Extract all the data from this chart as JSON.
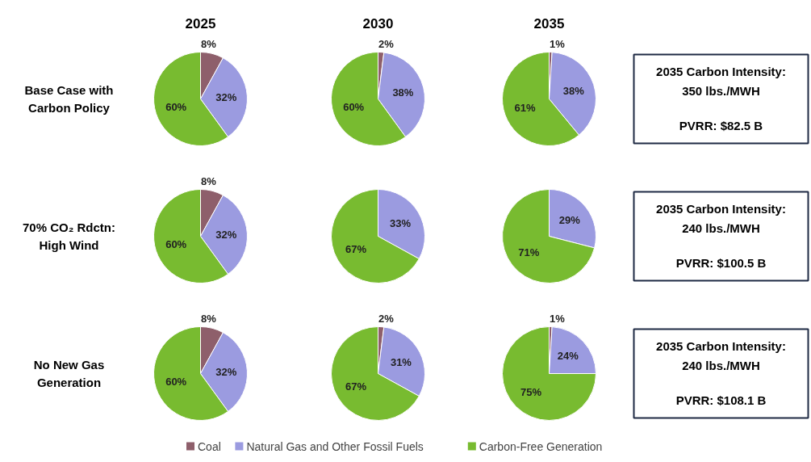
{
  "chart_data": [
    {
      "type": "other",
      "annotations": [
        "Base Case with\nCarbon Policy"
      ]
    },
    {
      "type": "pie",
      "title": "2025",
      "categories": [
        "Coal",
        "Natural Gas and Other Fossil Fuels",
        "Carbon-Free Generation"
      ],
      "values": [
        8,
        32,
        60
      ],
      "colors": [
        "#8e5f6b",
        "#9b9be0",
        "#78bb30"
      ],
      "value_labels": [
        "8%",
        "32%",
        "60%"
      ],
      "legend": "bottom"
    },
    {
      "type": "pie",
      "title": "2030",
      "categories": [
        null,
        null,
        null
      ],
      "values": [
        2,
        38,
        60
      ],
      "colors": [
        "#8e5f6b",
        "#9b9be0",
        "#78bb30"
      ],
      "value_labels": [
        "2%",
        "38%",
        "60%"
      ]
    },
    {
      "type": "pie",
      "title": "2035",
      "categories": [
        null,
        null,
        null
      ],
      "values": [
        1,
        38,
        61
      ],
      "colors": [
        "#8e5f6b",
        "#9b9be0",
        "#78bb30"
      ],
      "value_labels": [
        "1%",
        "38%",
        "61%"
      ]
    },
    {
      "type": "other",
      "annotations": [
        "2035 Carbon Intensity:\n350 lbs./MWH",
        "PVRR: $82.5 B"
      ]
    },
    {
      "type": "other",
      "annotations": [
        "70% CO₂ Rdctn:\nHigh Wind"
      ]
    },
    {
      "type": "pie",
      "categories": [
        null,
        null,
        null
      ],
      "values": [
        8,
        32,
        60
      ],
      "colors": [
        "#8e5f6b",
        "#9b9be0",
        "#78bb30"
      ],
      "value_labels": [
        "8%",
        "32%",
        "60%"
      ]
    },
    {
      "type": "pie",
      "categories": [
        null,
        null,
        null
      ],
      "values": [
        0,
        33,
        67
      ],
      "colors": [
        "#8e5f6b",
        "#9b9be0",
        "#78bb30"
      ],
      "value_labels": [
        null,
        "33%",
        "67%"
      ]
    },
    {
      "type": "pie",
      "categories": [
        null,
        null,
        null
      ],
      "values": [
        0,
        29,
        71
      ],
      "colors": [
        "#8e5f6b",
        "#9b9be0",
        "#78bb30"
      ],
      "value_labels": [
        null,
        "29%",
        "71%"
      ]
    },
    {
      "type": "other",
      "annotations": [
        "2035 Carbon Intensity:\n240 lbs./MWH",
        "PVRR: $100.5 B"
      ]
    },
    {
      "type": "other",
      "annotations": [
        "No New Gas\nGeneration"
      ]
    },
    {
      "type": "pie",
      "categories": [
        null,
        null,
        null
      ],
      "values": [
        8,
        32,
        60
      ],
      "colors": [
        "#8e5f6b",
        "#9b9be0",
        "#78bb30"
      ],
      "value_labels": [
        "8%",
        "32%",
        "60%"
      ]
    },
    {
      "type": "pie",
      "categories": [
        null,
        null,
        null
      ],
      "values": [
        2,
        31,
        67
      ],
      "colors": [
        "#8e5f6b",
        "#9b9be0",
        "#78bb30"
      ],
      "value_labels": [
        "2%",
        "31%",
        "67%"
      ]
    },
    {
      "type": "pie",
      "categories": [
        null,
        null,
        null
      ],
      "values": [
        1,
        24,
        75
      ],
      "colors": [
        "#8e5f6b",
        "#9b9be0",
        "#78bb30"
      ],
      "value_labels": [
        "1%",
        "24%",
        "75%"
      ]
    },
    {
      "type": "other",
      "annotations": [
        "2035 Carbon Intensity:\n240 lbs./MWH",
        "PVRR: $108.1 B"
      ]
    }
  ]
}
